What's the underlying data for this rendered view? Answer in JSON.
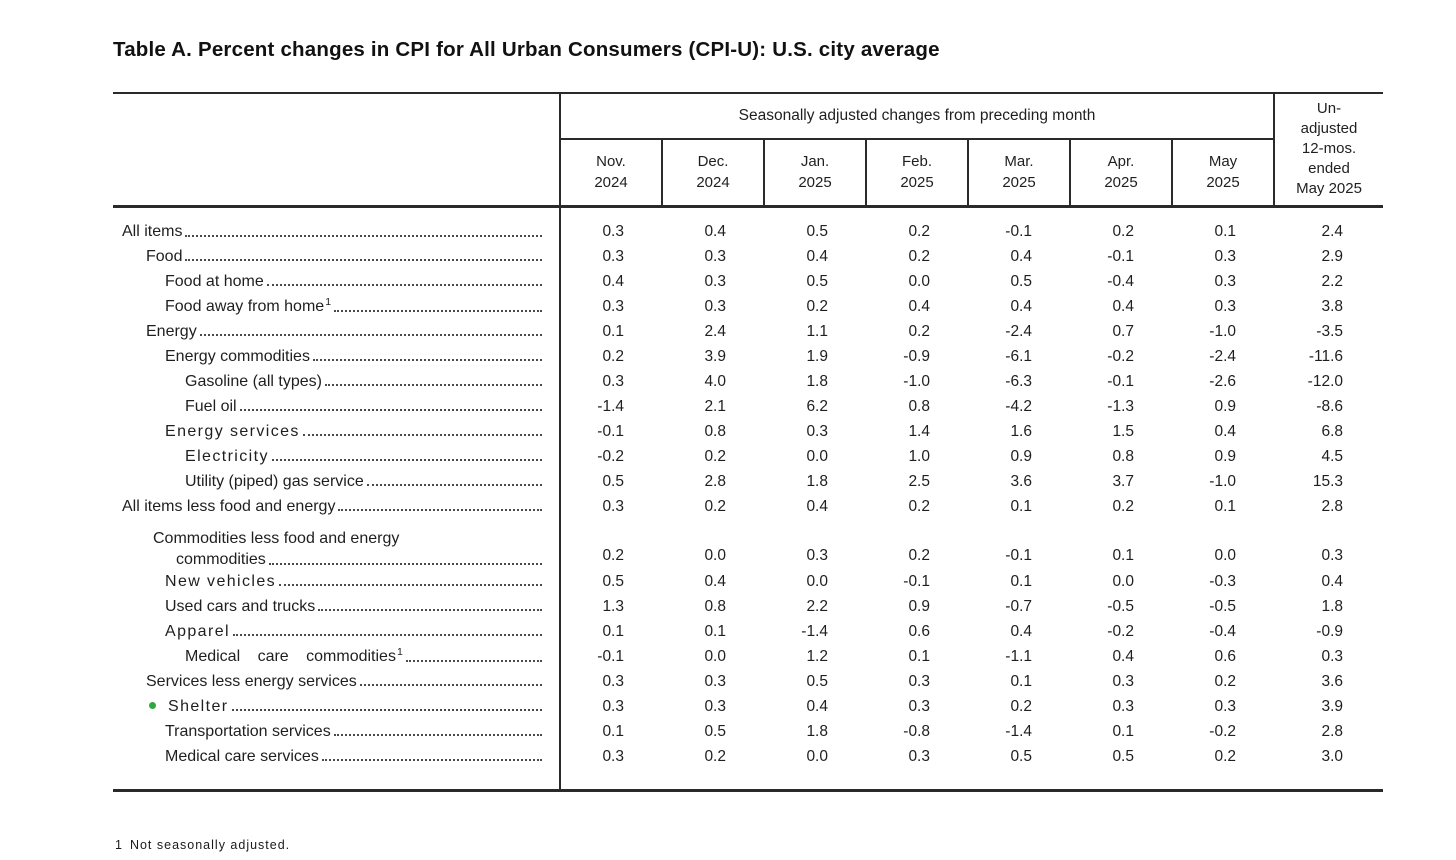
{
  "title": "Table A. Percent changes in CPI for All Urban Consumers (CPI-U): U.S. city average",
  "table": {
    "group_header": "Seasonally adjusted changes from preceding month",
    "columns": [
      {
        "month": "Nov.",
        "year": "2024"
      },
      {
        "month": "Dec.",
        "year": "2024"
      },
      {
        "month": "Jan.",
        "year": "2025"
      },
      {
        "month": "Feb.",
        "year": "2025"
      },
      {
        "month": "Mar.",
        "year": "2025"
      },
      {
        "month": "Apr.",
        "year": "2025"
      },
      {
        "month": "May",
        "year": "2025"
      }
    ],
    "unadjusted_lines": [
      "Un-",
      "adjusted",
      "12-mos.",
      "ended",
      "May 2025"
    ],
    "rows": [
      {
        "label": "All items",
        "indent": 0,
        "values": [
          "0.3",
          "0.4",
          "0.5",
          "0.2",
          "-0.1",
          "0.2",
          "0.1",
          "2.4"
        ]
      },
      {
        "label": "Food",
        "indent": 1,
        "values": [
          "0.3",
          "0.3",
          "0.4",
          "0.2",
          "0.4",
          "-0.1",
          "0.3",
          "2.9"
        ]
      },
      {
        "label": "Food at home",
        "indent": 2,
        "values": [
          "0.4",
          "0.3",
          "0.5",
          "0.0",
          "0.5",
          "-0.4",
          "0.3",
          "2.2"
        ]
      },
      {
        "label": "Food away from home",
        "sup": "1",
        "indent": 2,
        "values": [
          "0.3",
          "0.3",
          "0.2",
          "0.4",
          "0.4",
          "0.4",
          "0.3",
          "3.8"
        ]
      },
      {
        "label": "Energy",
        "indent": 1,
        "values": [
          "0.1",
          "2.4",
          "1.1",
          "0.2",
          "-2.4",
          "0.7",
          "-1.0",
          "-3.5"
        ]
      },
      {
        "label": "Energy commodities",
        "indent": 2,
        "values": [
          "0.2",
          "3.9",
          "1.9",
          "-0.9",
          "-6.1",
          "-0.2",
          "-2.4",
          "-11.6"
        ]
      },
      {
        "label": "Gasoline (all types)",
        "indent": 3,
        "values": [
          "0.3",
          "4.0",
          "1.8",
          "-1.0",
          "-6.3",
          "-0.1",
          "-2.6",
          "-12.0"
        ]
      },
      {
        "label": "Fuel oil",
        "indent": 3,
        "values": [
          "-1.4",
          "2.1",
          "6.2",
          "0.8",
          "-4.2",
          "-1.3",
          "0.9",
          "-8.6"
        ]
      },
      {
        "label": "Energy services",
        "indent": 2,
        "tracked": true,
        "values": [
          "-0.1",
          "0.8",
          "0.3",
          "1.4",
          "1.6",
          "1.5",
          "0.4",
          "6.8"
        ]
      },
      {
        "label": "Electricity",
        "indent": 3,
        "tracked": true,
        "values": [
          "-0.2",
          "0.2",
          "0.0",
          "1.0",
          "0.9",
          "0.8",
          "0.9",
          "4.5"
        ]
      },
      {
        "label": "Utility (piped) gas service",
        "indent": 3,
        "values": [
          "0.5",
          "2.8",
          "1.8",
          "2.5",
          "3.6",
          "3.7",
          "-1.0",
          "15.3"
        ]
      },
      {
        "label": "All items less food and energy",
        "indent": 0,
        "values": [
          "0.3",
          "0.2",
          "0.4",
          "0.2",
          "0.1",
          "0.2",
          "0.1",
          "2.8"
        ]
      },
      {
        "label": "Commodities less food and energy",
        "label2": "commodities",
        "values": [
          "0.2",
          "0.0",
          "0.3",
          "0.2",
          "-0.1",
          "0.1",
          "0.0",
          "0.3"
        ]
      },
      {
        "label": "New vehicles",
        "indent": 2,
        "tracked": true,
        "values": [
          "0.5",
          "0.4",
          "0.0",
          "-0.1",
          "0.1",
          "0.0",
          "-0.3",
          "0.4"
        ]
      },
      {
        "label": "Used cars and trucks",
        "indent": 2,
        "values": [
          "1.3",
          "0.8",
          "2.2",
          "0.9",
          "-0.7",
          "-0.5",
          "-0.5",
          "1.8"
        ]
      },
      {
        "label": "Apparel",
        "indent": 2,
        "tracked": true,
        "values": [
          "0.1",
          "0.1",
          "-1.4",
          "0.6",
          "0.4",
          "-0.2",
          "-0.4",
          "-0.9"
        ]
      },
      {
        "label": "Medical care commodities",
        "sup": "1",
        "indent": 3,
        "justified": true,
        "values": [
          "-0.1",
          "0.0",
          "1.2",
          "0.1",
          "-1.1",
          "0.4",
          "0.6",
          "0.3"
        ]
      },
      {
        "label": "Services less energy services",
        "indent": 1,
        "values": [
          "0.3",
          "0.3",
          "0.5",
          "0.3",
          "0.1",
          "0.3",
          "0.2",
          "3.6"
        ]
      },
      {
        "label": "Shelter",
        "indent": 2,
        "bullet": true,
        "tracked": true,
        "values": [
          "0.3",
          "0.3",
          "0.4",
          "0.3",
          "0.2",
          "0.3",
          "0.3",
          "3.9"
        ]
      },
      {
        "label": "Transportation services",
        "indent": 2,
        "values": [
          "0.1",
          "0.5",
          "1.8",
          "-0.8",
          "-1.4",
          "0.1",
          "-0.2",
          "2.8"
        ]
      },
      {
        "label": "Medical care services",
        "indent": 2,
        "values": [
          "0.3",
          "0.2",
          "0.0",
          "0.3",
          "0.5",
          "0.5",
          "0.2",
          "3.0"
        ]
      }
    ]
  },
  "footnote": {
    "marker": "1",
    "text": "Not seasonally adjusted."
  },
  "colors": {
    "bullet_green": "#2fa83c",
    "rule": "#2a2a2a",
    "text": "#1f1f1f"
  }
}
